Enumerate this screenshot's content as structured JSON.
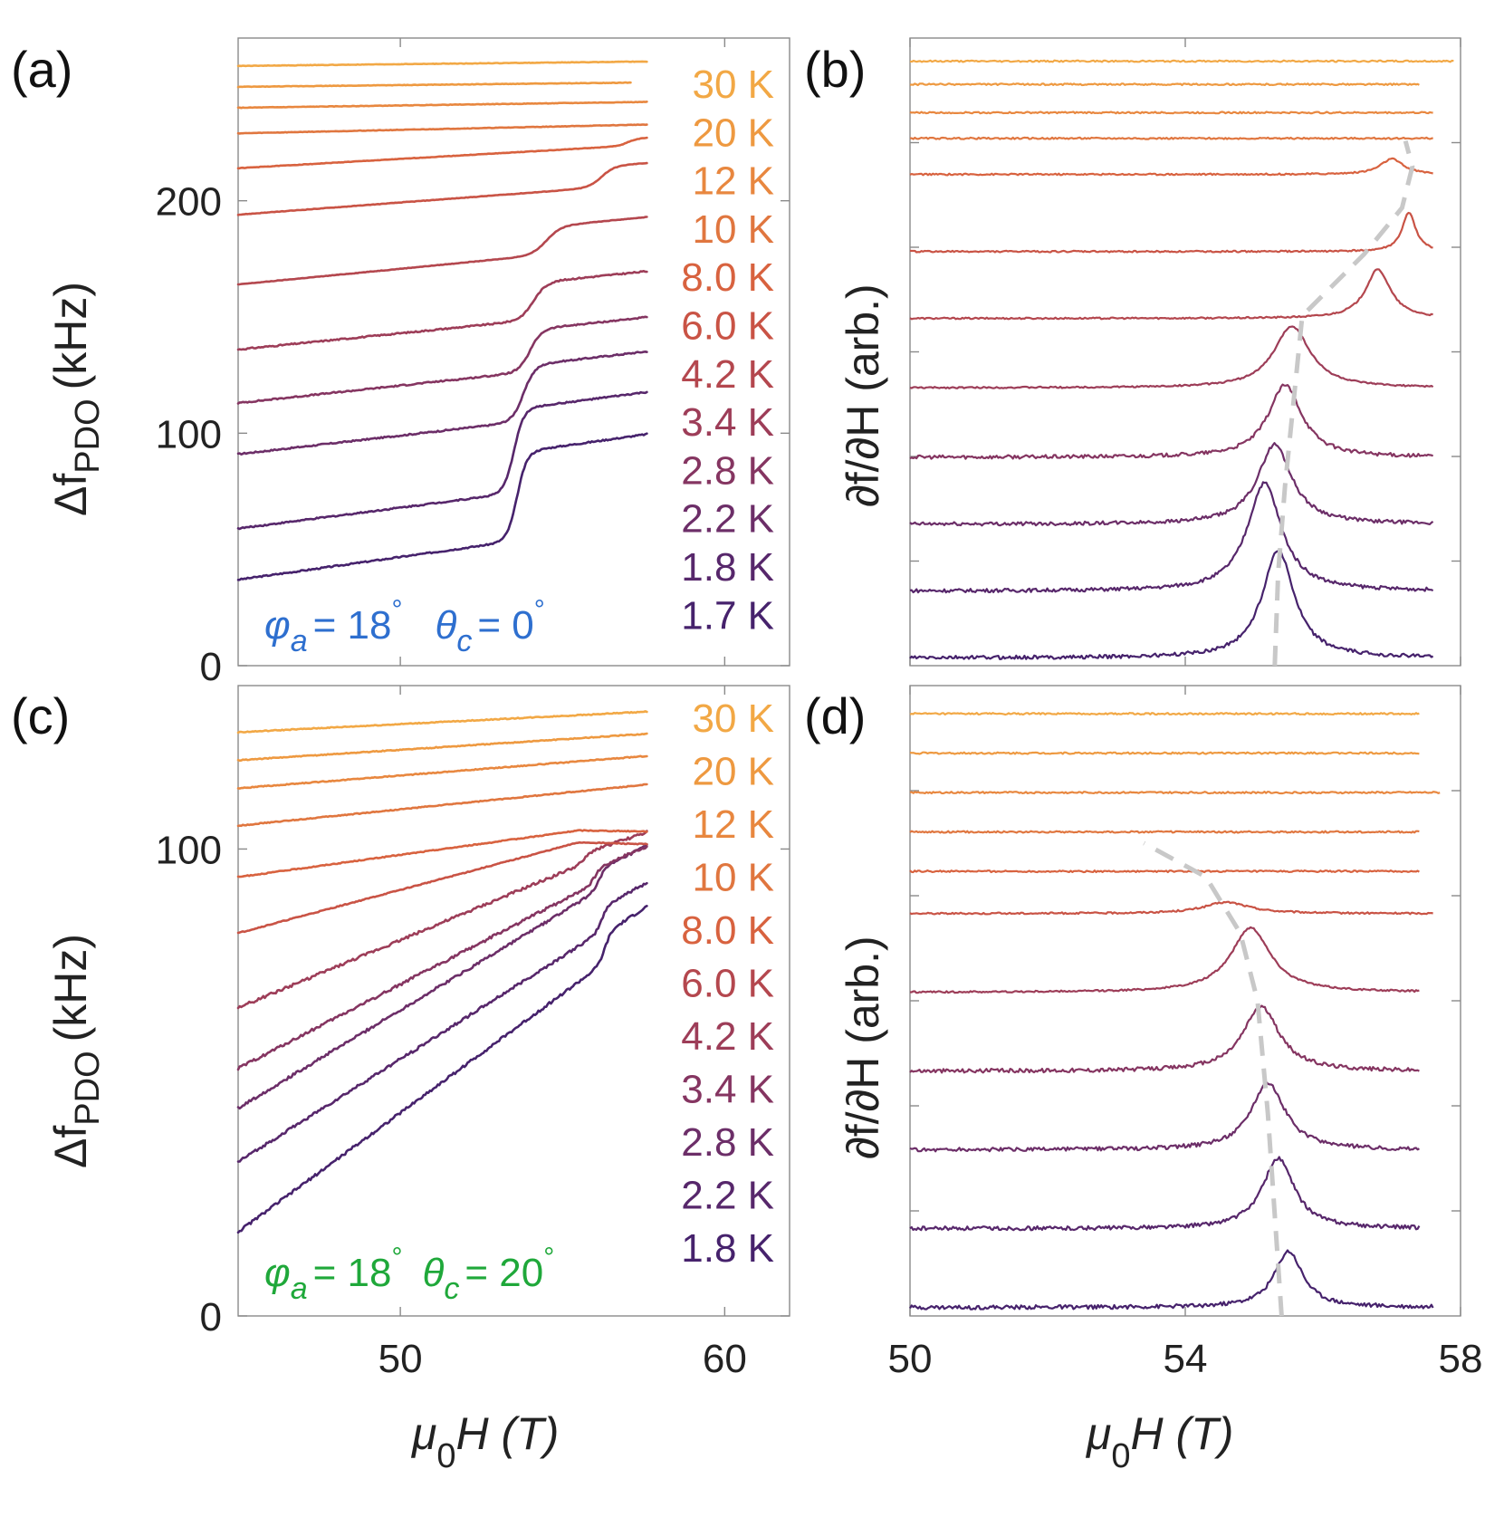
{
  "colors": {
    "temps_palette": [
      "#f2a845",
      "#ee9940",
      "#e8873f",
      "#e0763f",
      "#d8623f",
      "#c95345",
      "#b4474e",
      "#9d3d58",
      "#853561",
      "#6c2e68",
      "#57276b",
      "#46226c"
    ],
    "label_a_angle": "#2e6fcf",
    "label_c_angle": "#1fa83a",
    "guide": "#c8c8c8"
  },
  "panels": {
    "a": {
      "label": "(a)"
    },
    "b": {
      "label": "(b)"
    },
    "c": {
      "label": "(c)"
    },
    "d": {
      "label": "(d)"
    }
  },
  "axes": {
    "left_ylabel_main": "Δf",
    "left_ylabel_sub": "PDO",
    "left_ylabel_unit": "(kHz)",
    "right_ylabel": "∂f/∂H (arb.)",
    "xlabel_mu": "μ",
    "xlabel_sub": "0",
    "xlabel_rest": "H (T)"
  },
  "angles": {
    "a": {
      "phi": "φ",
      "phi_sub": "a",
      "phi_val": "= 18",
      "deg": "°",
      "theta": "θ",
      "theta_sub": "c",
      "theta_val": "= 0"
    },
    "c": {
      "phi": "φ",
      "phi_sub": "a",
      "phi_val": "= 18",
      "deg": "°",
      "theta": "θ",
      "theta_sub": "c",
      "theta_val": "= 20"
    }
  },
  "chart_data": [
    {
      "panel": "a",
      "type": "line",
      "xlabel": "μ0H (T)",
      "ylabel": "ΔfPDO (kHz)",
      "xlim": [
        45,
        62
      ],
      "ylim": [
        0,
        270
      ],
      "xticks": [
        "50",
        "60"
      ],
      "yticks": [
        "0",
        "100",
        "200"
      ],
      "legend": [
        "30 K",
        "20 K",
        "12 K",
        "10 K",
        "8.0 K",
        "6.0 K",
        "4.2 K",
        "3.4 K",
        "2.8 K",
        "2.2 K",
        "1.8 K",
        "1.7 K"
      ],
      "series": [
        {
          "name": "1.7 K",
          "offset": 37,
          "slope": 1.95,
          "step": 38,
          "hc": 53.6,
          "width": 0.3,
          "xmax": 57.6
        },
        {
          "name": "1.8 K",
          "offset": 59,
          "slope": 1.8,
          "step": 36,
          "hc": 53.5,
          "width": 0.3,
          "xmax": 57.6
        },
        {
          "name": "2.2 K",
          "offset": 91,
          "slope": 1.6,
          "step": 24,
          "hc": 53.8,
          "width": 0.35,
          "xmax": 57.6
        },
        {
          "name": "2.8 K",
          "offset": 113,
          "slope": 1.5,
          "step": 18,
          "hc": 54.0,
          "width": 0.35,
          "xmax": 57.6
        },
        {
          "name": "3.4 K",
          "offset": 136,
          "slope": 1.4,
          "step": 16,
          "hc": 54.1,
          "width": 0.4,
          "xmax": 57.6
        },
        {
          "name": "4.2 K",
          "offset": 164,
          "slope": 1.35,
          "step": 12,
          "hc": 54.5,
          "width": 0.45,
          "xmax": 57.6
        },
        {
          "name": "6.0 K",
          "offset": 194,
          "slope": 1.05,
          "step": 9,
          "hc": 56.2,
          "width": 0.4,
          "xmax": 57.6
        },
        {
          "name": "8.0 K",
          "offset": 214,
          "slope": 0.8,
          "step": 3,
          "hc": 57.0,
          "width": 0.3,
          "xmax": 57.6
        },
        {
          "name": "10 K",
          "offset": 229,
          "slope": 0.3,
          "step": 0,
          "hc": 57.5,
          "width": 0.3,
          "xmax": 57.6
        },
        {
          "name": "12 K",
          "offset": 240,
          "slope": 0.2,
          "step": 0,
          "hc": 57.5,
          "width": 0.3,
          "xmax": 57.6
        },
        {
          "name": "20 K",
          "offset": 249,
          "slope": 0.15,
          "step": 0,
          "hc": 57.5,
          "width": 0.3,
          "xmax": 57.1
        },
        {
          "name": "30 K",
          "offset": 258,
          "slope": 0.15,
          "step": 0,
          "hc": 57.5,
          "width": 0.3,
          "xmax": 57.6
        }
      ]
    },
    {
      "panel": "b",
      "type": "line",
      "xlabel": "μ0H (T)",
      "ylabel": "∂f/∂H (arb.)",
      "xlim": [
        50,
        58
      ],
      "ylim": [
        0,
        12.2
      ],
      "xticks": [
        "50",
        "54",
        "58"
      ],
      "series": [
        {
          "name": "1.7 K",
          "baseline": 0.15,
          "peak_x": 55.35,
          "peak_h": 2.1,
          "peak_w": 0.28,
          "xmax": 57.6
        },
        {
          "name": "1.8 K",
          "baseline": 1.45,
          "peak_x": 55.15,
          "peak_h": 2.1,
          "peak_w": 0.3,
          "xmax": 57.6
        },
        {
          "name": "2.2 K",
          "baseline": 2.75,
          "peak_x": 55.3,
          "peak_h": 1.55,
          "peak_w": 0.3,
          "xmax": 57.6
        },
        {
          "name": "2.8 K",
          "baseline": 4.05,
          "peak_x": 55.45,
          "peak_h": 1.4,
          "peak_w": 0.3,
          "xmax": 57.6
        },
        {
          "name": "3.4 K",
          "baseline": 5.4,
          "peak_x": 55.55,
          "peak_h": 1.2,
          "peak_w": 0.32,
          "xmax": 57.6
        },
        {
          "name": "4.2 K",
          "baseline": 6.75,
          "peak_x": 56.8,
          "peak_h": 0.95,
          "peak_w": 0.22,
          "xmax": 57.6
        },
        {
          "name": "6.0 K",
          "baseline": 8.05,
          "peak_x": 57.25,
          "peak_h": 0.75,
          "peak_w": 0.12,
          "xmax": 57.6
        },
        {
          "name": "8.0 K",
          "baseline": 9.55,
          "peak_x": 57.0,
          "peak_h": 0.3,
          "peak_w": 0.2,
          "xmax": 57.6
        },
        {
          "name": "10 K",
          "baseline": 10.25,
          "peak_x": 57.0,
          "peak_h": 0,
          "peak_w": 0.2,
          "xmax": 57.6
        },
        {
          "name": "12 K",
          "baseline": 10.75,
          "peak_x": 57.0,
          "peak_h": 0,
          "peak_w": 0.2,
          "xmax": 57.6
        },
        {
          "name": "20 K",
          "baseline": 11.3,
          "peak_x": 57.0,
          "peak_h": 0,
          "peak_w": 0.2,
          "xmax": 57.4
        },
        {
          "name": "30 K",
          "baseline": 11.75,
          "peak_x": 57.0,
          "peak_h": 0,
          "peak_w": 0.2,
          "xmax": 57.9
        }
      ],
      "guide_x": [
        55.3,
        55.35,
        55.45,
        55.7,
        56.6,
        57.15,
        57.3,
        57.2
      ],
      "guide_y": [
        0.0,
        1.8,
        3.5,
        6.8,
        8.0,
        8.9,
        9.7,
        10.2
      ]
    },
    {
      "panel": "c",
      "type": "line",
      "xlabel": "μ0H (T)",
      "ylabel": "ΔfPDO (kHz)",
      "xlim": [
        45,
        62
      ],
      "ylim": [
        0,
        135
      ],
      "xticks": [
        "50",
        "60"
      ],
      "yticks": [
        "0",
        "100"
      ],
      "legend": [
        "30 K",
        "20 K",
        "12 K",
        "10 K",
        "8.0 K",
        "6.0 K",
        "4.2 K",
        "3.4 K",
        "2.8 K",
        "2.2 K",
        "1.8 K"
      ],
      "series": [
        {
          "name": "1.8 K",
          "offset": 18,
          "slope": 5.1,
          "step": 6,
          "hc": 56.3,
          "width": 0.2,
          "xmax": 57.6
        },
        {
          "name": "2.2 K",
          "offset": 33,
          "slope": 4.4,
          "step": 5,
          "hc": 56.2,
          "width": 0.2,
          "xmax": 57.6
        },
        {
          "name": "2.8 K",
          "offset": 44.5,
          "slope": 4.2,
          "step": 4,
          "hc": 56.1,
          "width": 0.2,
          "xmax": 57.6
        },
        {
          "name": "3.4 K",
          "offset": 53,
          "slope": 3.6,
          "step": 3,
          "hc": 56.0,
          "width": 0.2,
          "xmax": 57.6
        },
        {
          "name": "4.2 K",
          "offset": 66,
          "slope": 2.9,
          "step": 2,
          "hc": 55.7,
          "width": 0.2,
          "xmax": 57.6
        },
        {
          "name": "6.0 K",
          "offset": 82,
          "slope": 1.85,
          "step": 0,
          "hc": 55.6,
          "width": 0.2,
          "xmax": 57.6
        },
        {
          "name": "8.0 K",
          "offset": 94,
          "slope": 0.95,
          "step": 0,
          "hc": 55.0,
          "width": 0.2,
          "xmax": 57.6
        },
        {
          "name": "10 K",
          "offset": 105,
          "slope": 0.7,
          "step": 0,
          "hc": 55.0,
          "width": 0.2,
          "xmax": 57.6
        },
        {
          "name": "12 K",
          "offset": 113,
          "slope": 0.55,
          "step": 0,
          "hc": 55.0,
          "width": 0.2,
          "xmax": 57.6
        },
        {
          "name": "20 K",
          "offset": 119,
          "slope": 0.45,
          "step": 0,
          "hc": 55.0,
          "width": 0.2,
          "xmax": 57.6
        },
        {
          "name": "30 K",
          "offset": 125,
          "slope": 0.35,
          "step": 0,
          "hc": 55.0,
          "width": 0.2,
          "xmax": 57.6
        }
      ]
    },
    {
      "panel": "d",
      "type": "line",
      "xlabel": "μ0H (T)",
      "ylabel": "∂f/∂H (arb.)",
      "xlim": [
        50,
        58
      ],
      "ylim": [
        0,
        11.2
      ],
      "xticks": [
        "50",
        "54",
        "58"
      ],
      "series": [
        {
          "name": "1.8 K",
          "baseline": 0.15,
          "peak_x": 55.5,
          "peak_h": 1.0,
          "peak_w": 0.25,
          "xmax": 57.6
        },
        {
          "name": "2.2 K",
          "baseline": 1.55,
          "peak_x": 55.35,
          "peak_h": 1.25,
          "peak_w": 0.28,
          "xmax": 57.4
        },
        {
          "name": "2.8 K",
          "baseline": 2.95,
          "peak_x": 55.2,
          "peak_h": 1.2,
          "peak_w": 0.3,
          "xmax": 57.4
        },
        {
          "name": "3.4 K",
          "baseline": 4.35,
          "peak_x": 55.1,
          "peak_h": 1.15,
          "peak_w": 0.32,
          "xmax": 57.4
        },
        {
          "name": "4.2 K",
          "baseline": 5.75,
          "peak_x": 54.95,
          "peak_h": 1.15,
          "peak_w": 0.35,
          "xmax": 57.4
        },
        {
          "name": "6.0 K",
          "baseline": 7.15,
          "peak_x": 54.6,
          "peak_h": 0.2,
          "peak_w": 0.4,
          "xmax": 57.6
        },
        {
          "name": "8.0 K",
          "baseline": 7.9,
          "peak_x": 54.6,
          "peak_h": 0,
          "peak_w": 0.4,
          "xmax": 57.4
        },
        {
          "name": "10 K",
          "baseline": 8.6,
          "peak_x": 54.6,
          "peak_h": 0,
          "peak_w": 0.4,
          "xmax": 57.4
        },
        {
          "name": "12 K",
          "baseline": 9.3,
          "peak_x": 54.6,
          "peak_h": 0,
          "peak_w": 0.4,
          "xmax": 57.7
        },
        {
          "name": "20 K",
          "baseline": 10.0,
          "peak_x": 54.6,
          "peak_h": 0,
          "peak_w": 0.4,
          "xmax": 57.4
        },
        {
          "name": "30 K",
          "baseline": 10.7,
          "peak_x": 54.6,
          "peak_h": 0,
          "peak_w": 0.4,
          "xmax": 57.4
        }
      ],
      "guide_x": [
        55.4,
        55.3,
        55.2,
        55.05,
        54.8,
        54.3,
        53.4
      ],
      "guide_y": [
        0.0,
        1.8,
        3.6,
        5.6,
        6.8,
        7.8,
        8.4
      ]
    }
  ]
}
